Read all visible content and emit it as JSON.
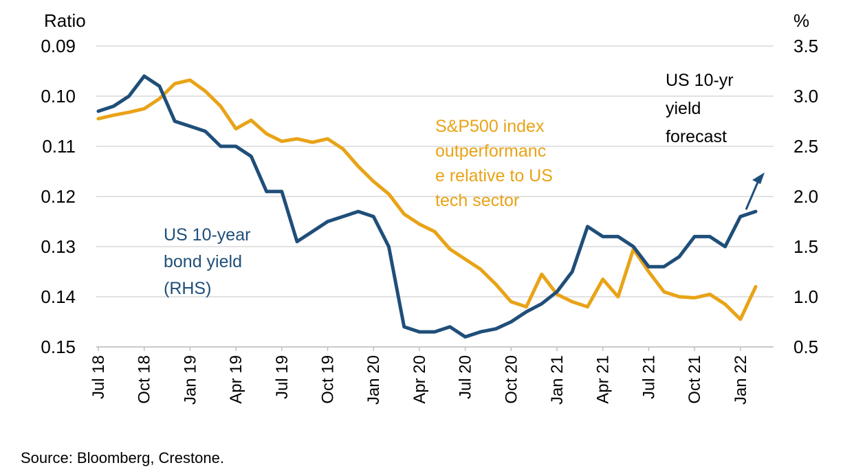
{
  "chart_data": {
    "type": "line",
    "left_axis_title": "Ratio",
    "right_axis_title": "%",
    "left_axis": {
      "ylim": [
        0.09,
        0.15
      ],
      "inverted": true,
      "ticks": [
        "0.09",
        "0.10",
        "0.11",
        "0.12",
        "0.13",
        "0.14",
        "0.15"
      ]
    },
    "right_axis": {
      "ylim": [
        0.5,
        3.5
      ],
      "ticks": [
        "3.5",
        "3.0",
        "2.5",
        "2.0",
        "1.5",
        "1.0",
        "0.5"
      ]
    },
    "x_ticks": [
      "Jul 18",
      "Oct 18",
      "Jan 19",
      "Apr 19",
      "Jul 19",
      "Oct 19",
      "Jan 20",
      "Apr 20",
      "Jul 20",
      "Oct 20",
      "Jan 21",
      "Apr 21",
      "Jul 21",
      "Oct 21",
      "Jan 22"
    ],
    "grid": "horizontal",
    "series": [
      {
        "name": "S&P500 index outperformance relative to US tech sector",
        "axis": "left",
        "color": "#E8A317",
        "x": [
          "Jul 18",
          "Aug 18",
          "Sep 18",
          "Oct 18",
          "Nov 18",
          "Dec 18",
          "Jan 19",
          "Feb 19",
          "Mar 19",
          "Apr 19",
          "May 19",
          "Jun 19",
          "Jul 19",
          "Aug 19",
          "Sep 19",
          "Oct 19",
          "Nov 19",
          "Dec 19",
          "Jan 20",
          "Feb 20",
          "Mar 20",
          "Apr 20",
          "May 20",
          "Jun 20",
          "Jul 20",
          "Aug 20",
          "Sep 20",
          "Oct 20",
          "Nov 20",
          "Dec 20",
          "Jan 21",
          "Feb 21",
          "Mar 21",
          "Apr 21",
          "May 21",
          "Jun 21",
          "Jul 21",
          "Aug 21",
          "Sep 21",
          "Oct 21",
          "Nov 21",
          "Dec 21",
          "Jan 22",
          "Feb 22"
        ],
        "values": [
          0.1045,
          0.1038,
          0.1032,
          0.1025,
          0.1005,
          0.0975,
          0.0968,
          0.099,
          0.102,
          0.1065,
          0.1048,
          0.1075,
          0.109,
          0.1085,
          0.1092,
          0.1085,
          0.1105,
          0.114,
          0.117,
          0.1195,
          0.1235,
          0.1255,
          0.127,
          0.1305,
          0.1325,
          0.1345,
          0.1375,
          0.141,
          0.142,
          0.1355,
          0.1395,
          0.141,
          0.142,
          0.1365,
          0.14,
          0.1305,
          0.135,
          0.139,
          0.14,
          0.1402,
          0.1395,
          0.1415,
          0.1445,
          0.138
        ]
      },
      {
        "name": "US 10-year bond yield (RHS)",
        "axis": "right",
        "color": "#1F4E79",
        "x": [
          "Jul 18",
          "Aug 18",
          "Sep 18",
          "Oct 18",
          "Nov 18",
          "Dec 18",
          "Jan 19",
          "Feb 19",
          "Mar 19",
          "Apr 19",
          "May 19",
          "Jun 19",
          "Jul 19",
          "Aug 19",
          "Sep 19",
          "Oct 19",
          "Nov 19",
          "Dec 19",
          "Jan 20",
          "Feb 20",
          "Mar 20",
          "Apr 20",
          "May 20",
          "Jun 20",
          "Jul 20",
          "Aug 20",
          "Sep 20",
          "Oct 20",
          "Nov 20",
          "Dec 20",
          "Jan 21",
          "Feb 21",
          "Mar 21",
          "Apr 21",
          "May 21",
          "Jun 21",
          "Jul 21",
          "Aug 21",
          "Sep 21",
          "Oct 21",
          "Nov 21",
          "Dec 21",
          "Jan 22",
          "Feb 22"
        ],
        "values": [
          2.85,
          2.9,
          3.0,
          3.2,
          3.1,
          2.75,
          2.7,
          2.65,
          2.5,
          2.5,
          2.4,
          2.05,
          2.05,
          1.55,
          1.65,
          1.75,
          1.8,
          1.85,
          1.8,
          1.5,
          0.7,
          0.65,
          0.65,
          0.7,
          0.6,
          0.65,
          0.68,
          0.75,
          0.85,
          0.93,
          1.05,
          1.25,
          1.7,
          1.6,
          1.6,
          1.5,
          1.3,
          1.3,
          1.4,
          1.6,
          1.6,
          1.5,
          1.8,
          1.85
        ]
      }
    ],
    "annotations": {
      "sp_label": [
        "S&P500 index",
        "outperformanc",
        "e relative to US",
        "tech sector"
      ],
      "yield_label": [
        "US 10-year",
        "bond yield",
        "(RHS)"
      ],
      "forecast_label": [
        "US 10-yr",
        "yield",
        "forecast"
      ]
    },
    "colors": {
      "sp500": "#E8A317",
      "yield": "#1F4E79",
      "grid": "#D9D9D9"
    }
  },
  "source": "Source: Bloomberg, Crestone."
}
